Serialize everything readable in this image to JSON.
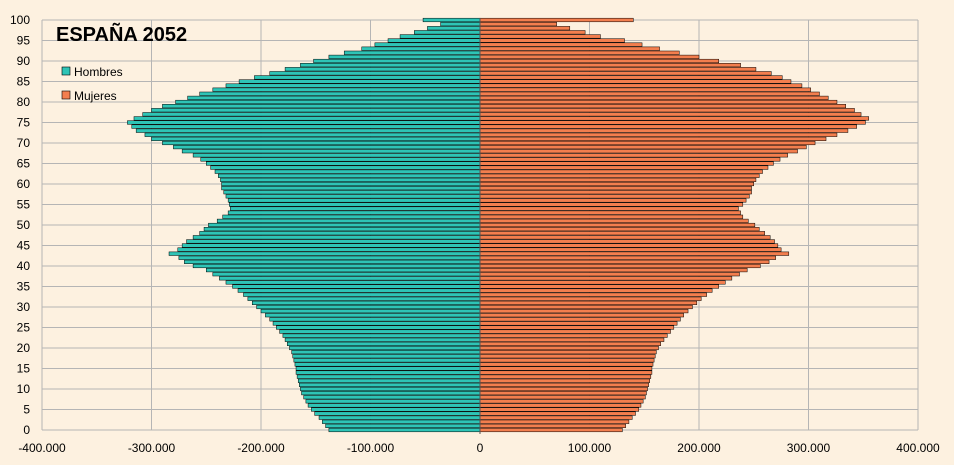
{
  "chart_data": {
    "type": "bar",
    "orientation": "horizontal-population-pyramid",
    "title": "ESPAÑA 2052",
    "xlabel": "",
    "ylabel": "",
    "xlim": [
      -400000,
      400000
    ],
    "ylim": [
      0,
      100
    ],
    "x_ticks": [
      -400000,
      -300000,
      -200000,
      -100000,
      0,
      100000,
      200000,
      300000,
      400000
    ],
    "x_tick_labels": [
      "-400.000",
      "-300.000",
      "-200.000",
      "-100.000",
      "0",
      "100.000",
      "200.000",
      "300.000",
      "400.000"
    ],
    "y_ticks": [
      0,
      5,
      10,
      15,
      20,
      25,
      30,
      35,
      40,
      45,
      50,
      55,
      60,
      65,
      70,
      75,
      80,
      85,
      90,
      95,
      100
    ],
    "y_tick_labels": [
      "0",
      "5",
      "10",
      "15",
      "20",
      "25",
      "30",
      "35",
      "40",
      "45",
      "50",
      "55",
      "60",
      "65",
      "70",
      "75",
      "80",
      "85",
      "90",
      "95",
      "100"
    ],
    "grid": true,
    "legend_position": "top-left",
    "colors": {
      "hombres": "#2ec4b6",
      "mujeres": "#f37e4e",
      "grid": "#b5b5b5",
      "background": "#fdf1e0",
      "bar_edge": "#000000"
    },
    "ages": [
      0,
      1,
      2,
      3,
      4,
      5,
      6,
      7,
      8,
      9,
      10,
      11,
      12,
      13,
      14,
      15,
      16,
      17,
      18,
      19,
      20,
      21,
      22,
      23,
      24,
      25,
      26,
      27,
      28,
      29,
      30,
      31,
      32,
      33,
      34,
      35,
      36,
      37,
      38,
      39,
      40,
      41,
      42,
      43,
      44,
      45,
      46,
      47,
      48,
      49,
      50,
      51,
      52,
      53,
      54,
      55,
      56,
      57,
      58,
      59,
      60,
      61,
      62,
      63,
      64,
      65,
      66,
      67,
      68,
      69,
      70,
      71,
      72,
      73,
      74,
      75,
      76,
      77,
      78,
      79,
      80,
      81,
      82,
      83,
      84,
      85,
      86,
      87,
      88,
      89,
      90,
      91,
      92,
      93,
      94,
      95,
      96,
      97,
      98,
      99,
      100
    ],
    "series": [
      {
        "name": "Hombres",
        "values": [
          138000,
          141000,
          144000,
          147000,
          151000,
          154000,
          157000,
          159000,
          161000,
          163000,
          164000,
          165000,
          166000,
          167000,
          168000,
          168000,
          169000,
          170000,
          171000,
          172000,
          174000,
          176000,
          178000,
          180000,
          183000,
          186000,
          189000,
          192000,
          196000,
          200000,
          204000,
          208000,
          212000,
          216000,
          221000,
          226000,
          232000,
          238000,
          244000,
          250000,
          262000,
          270000,
          275000,
          284000,
          276000,
          272000,
          268000,
          262000,
          256000,
          252000,
          248000,
          240000,
          235000,
          230000,
          228000,
          229000,
          230000,
          232000,
          234000,
          236000,
          236000,
          237000,
          239000,
          242000,
          246000,
          250000,
          255000,
          262000,
          272000,
          280000,
          290000,
          300000,
          306000,
          314000,
          318000,
          322000,
          316000,
          308000,
          300000,
          290000,
          278000,
          267000,
          256000,
          244000,
          232000,
          220000,
          206000,
          192000,
          178000,
          164000,
          152000,
          138000,
          124000,
          108000,
          96000,
          84000,
          73000,
          60000,
          48000,
          36000,
          52000
        ]
      },
      {
        "name": "Mujeres",
        "values": [
          130000,
          133000,
          136000,
          139000,
          142000,
          145000,
          147000,
          149000,
          151000,
          152000,
          153000,
          154000,
          155000,
          156000,
          157000,
          157000,
          158000,
          159000,
          160000,
          161000,
          163000,
          165000,
          168000,
          171000,
          174000,
          177000,
          180000,
          183000,
          186000,
          190000,
          194000,
          198000,
          202000,
          207000,
          212000,
          218000,
          224000,
          230000,
          237000,
          244000,
          256000,
          264000,
          270000,
          282000,
          275000,
          272000,
          269000,
          265000,
          260000,
          255000,
          251000,
          245000,
          240000,
          238000,
          236000,
          240000,
          243000,
          246000,
          248000,
          248000,
          250000,
          252000,
          255000,
          258000,
          263000,
          268000,
          274000,
          281000,
          290000,
          298000,
          306000,
          316000,
          326000,
          336000,
          344000,
          352000,
          355000,
          348000,
          342000,
          334000,
          326000,
          318000,
          310000,
          302000,
          294000,
          284000,
          276000,
          266000,
          252000,
          238000,
          218000,
          200000,
          182000,
          164000,
          148000,
          132000,
          110000,
          96000,
          82000,
          70000,
          140000
        ]
      }
    ]
  }
}
